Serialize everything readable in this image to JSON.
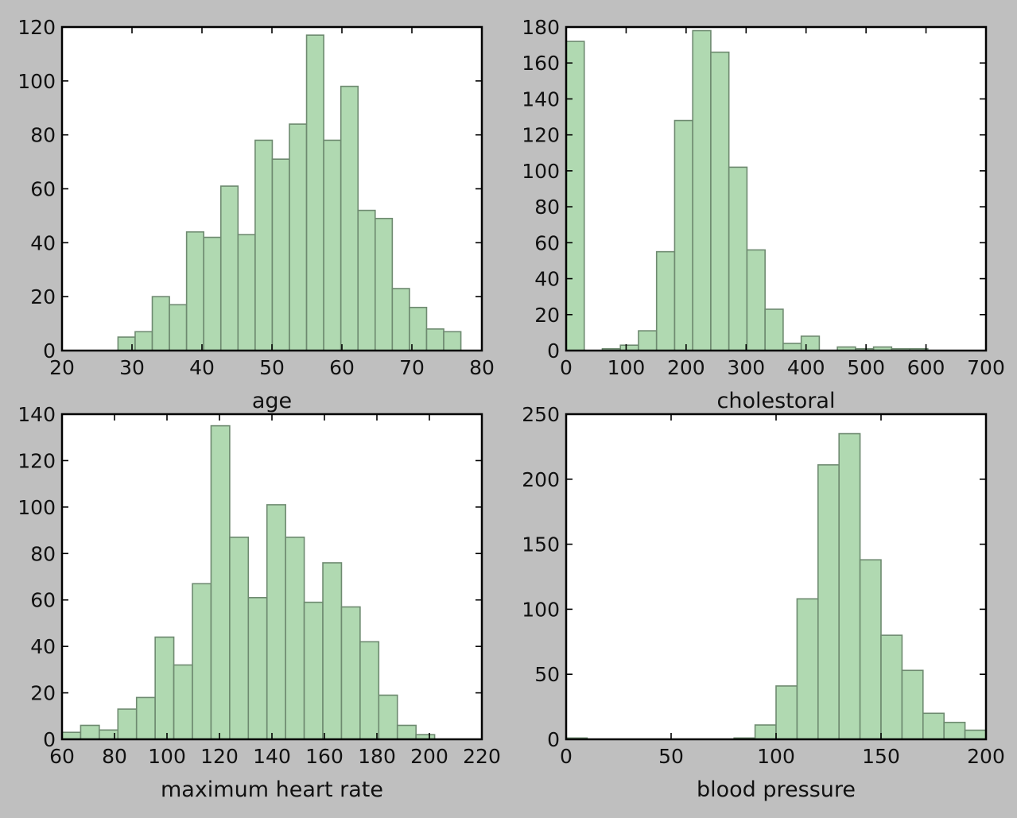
{
  "chart_data": [
    {
      "type": "bar",
      "xlabel": "age",
      "xlim": [
        20,
        80
      ],
      "ylim": [
        0,
        120
      ],
      "xticks": [
        20,
        30,
        40,
        50,
        60,
        70,
        80
      ],
      "yticks": [
        0,
        20,
        40,
        60,
        80,
        100,
        120
      ],
      "bin_edges": [
        28,
        30.45,
        32.9,
        35.35,
        37.8,
        40.25,
        42.7,
        45.15,
        47.6,
        50.05,
        52.5,
        54.95,
        57.4,
        59.85,
        62.3,
        64.75,
        67.2,
        69.65,
        72.1,
        74.55,
        77
      ],
      "values": [
        5,
        7,
        20,
        17,
        44,
        42,
        61,
        43,
        78,
        71,
        84,
        117,
        78,
        98,
        52,
        49,
        23,
        16,
        8,
        7
      ]
    },
    {
      "type": "bar",
      "xlabel": "cholestoral",
      "xlim": [
        0,
        700
      ],
      "ylim": [
        0,
        180
      ],
      "xticks": [
        0,
        100,
        200,
        300,
        400,
        500,
        600,
        700
      ],
      "yticks": [
        0,
        20,
        40,
        60,
        80,
        100,
        120,
        140,
        160,
        180
      ],
      "bin_edges": [
        0,
        30.15,
        60.3,
        90.45,
        120.6,
        150.75,
        180.9,
        211.05,
        241.2,
        271.35,
        301.5,
        331.65,
        361.8,
        391.95,
        422.1,
        452.25,
        482.4,
        512.55,
        542.7,
        572.85,
        603
      ],
      "values": [
        172,
        0,
        1,
        3,
        11,
        55,
        128,
        178,
        166,
        102,
        56,
        23,
        4,
        8,
        0,
        2,
        1,
        2,
        1,
        1
      ]
    },
    {
      "type": "bar",
      "xlabel": "maximum heart rate",
      "xlim": [
        60,
        220
      ],
      "ylim": [
        0,
        140
      ],
      "xticks": [
        60,
        80,
        100,
        120,
        140,
        160,
        180,
        200,
        220
      ],
      "yticks": [
        0,
        20,
        40,
        60,
        80,
        100,
        120,
        140
      ],
      "bin_edges": [
        60,
        67.1,
        74.2,
        81.3,
        88.4,
        95.5,
        102.6,
        109.7,
        116.8,
        123.9,
        131,
        138.1,
        145.2,
        152.3,
        159.4,
        166.5,
        173.6,
        180.7,
        187.8,
        194.9,
        202
      ],
      "values": [
        3,
        6,
        4,
        13,
        18,
        44,
        32,
        67,
        135,
        87,
        61,
        101,
        87,
        59,
        76,
        57,
        42,
        19,
        6,
        2
      ]
    },
    {
      "type": "bar",
      "xlabel": "blood pressure",
      "xlim": [
        0,
        200
      ],
      "ylim": [
        0,
        250
      ],
      "xticks": [
        0,
        50,
        100,
        150,
        200
      ],
      "yticks": [
        0,
        50,
        100,
        150,
        200,
        250
      ],
      "bin_edges": [
        0,
        10,
        20,
        30,
        40,
        50,
        60,
        70,
        80,
        90,
        100,
        110,
        120,
        130,
        140,
        150,
        160,
        170,
        180,
        190,
        200
      ],
      "values": [
        1,
        0,
        0,
        0,
        0,
        0,
        0,
        0,
        1,
        11,
        41,
        108,
        211,
        235,
        138,
        80,
        53,
        20,
        13,
        7
      ]
    }
  ]
}
